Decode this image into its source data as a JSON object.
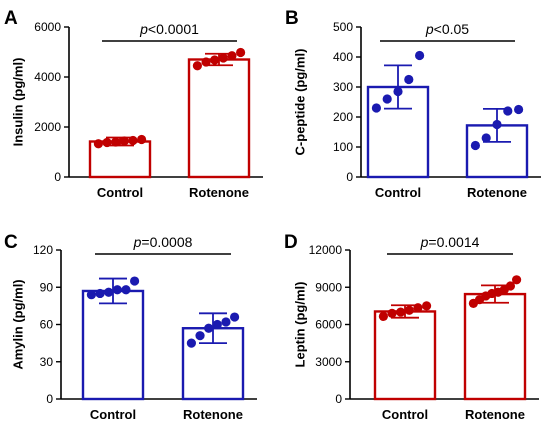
{
  "chart_data": [
    {
      "panel": "A",
      "type": "bar",
      "categories": [
        "Control",
        "Rotenone"
      ],
      "ylabel": "Insulin (pg/ml)",
      "ylim": [
        0,
        6000
      ],
      "yticks": [
        0,
        2000,
        4000,
        6000
      ],
      "color": "#c00000",
      "means": [
        1420,
        4700
      ],
      "sd": [
        160,
        230
      ],
      "points": [
        [
          1330,
          1380,
          1400,
          1440,
          1460,
          1500
        ],
        [
          4450,
          4600,
          4680,
          4760,
          4850,
          4980
        ]
      ],
      "annotation": {
        "p_label": "p",
        "p_text": "<0.0001"
      }
    },
    {
      "panel": "B",
      "type": "bar",
      "categories": [
        "Control",
        "Rotenone"
      ],
      "ylabel": "C-peptide (pg/ml)",
      "ylim": [
        0,
        500
      ],
      "yticks": [
        0,
        100,
        200,
        300,
        400,
        500
      ],
      "color": "#1a1ab0",
      "means": [
        300,
        172
      ],
      "sd": [
        72,
        55
      ],
      "points": [
        [
          230,
          260,
          285,
          325,
          405
        ],
        [
          105,
          130,
          175,
          220,
          225
        ]
      ],
      "annotation": {
        "p_label": "p",
        "p_text": "<0.05"
      }
    },
    {
      "panel": "C",
      "type": "bar",
      "categories": [
        "Control",
        "Rotenone"
      ],
      "ylabel": "Amylin (pg/ml)",
      "ylim": [
        0,
        120
      ],
      "yticks": [
        0,
        30,
        60,
        90,
        120
      ],
      "color": "#1a1ab0",
      "means": [
        87,
        57
      ],
      "sd": [
        10,
        12
      ],
      "points": [
        [
          84,
          85,
          86,
          88,
          88,
          95
        ],
        [
          45,
          51,
          57,
          60,
          62,
          66
        ]
      ],
      "annotation": {
        "p_label": "p",
        "p_text": "=0.0008"
      }
    },
    {
      "panel": "D",
      "type": "bar",
      "categories": [
        "Control",
        "Rotenone"
      ],
      "ylabel": "Leptin (pg/ml)",
      "ylim": [
        0,
        12000
      ],
      "yticks": [
        0,
        3000,
        6000,
        9000,
        12000
      ],
      "color": "#c00000",
      "means": [
        7050,
        8450
      ],
      "sd": [
        500,
        700
      ],
      "points": [
        [
          6650,
          6900,
          7000,
          7150,
          7350,
          7500
        ],
        [
          7700,
          8000,
          8300,
          8500,
          8600,
          8800,
          9100,
          9600
        ]
      ],
      "annotation": {
        "p_label": "p",
        "p_text": "=0.0014"
      }
    }
  ]
}
